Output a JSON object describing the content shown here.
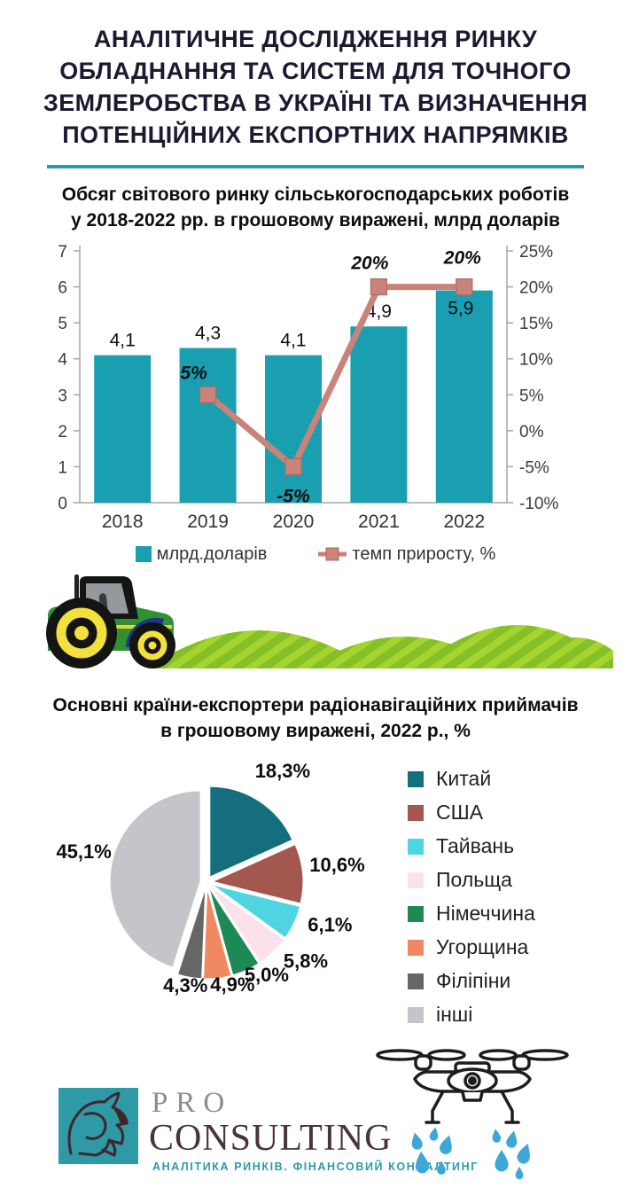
{
  "header": {
    "title_lines": [
      "АНАЛІТИЧНЕ ДОСЛІДЖЕННЯ РИНКУ",
      "ОБЛАДНАННЯ ТА СИСТЕМ ДЛЯ ТОЧНОГО",
      "ЗЕМЛЕРОБСТВА В УКРАЇНІ ТА ВИЗНАЧЕННЯ",
      "ПОТЕНЦІЙНИХ ЕКСПОРТНИХ НАПРЯМКІВ"
    ],
    "divider_color": "#2a9aa8"
  },
  "chart_data": [
    {
      "type": "bar",
      "title": "Обсяг світового ринку сільськогосподарських роботів у 2018-2022 рр. в грошовому виражені, млрд доларів",
      "title_lines": [
        "Обсяг світового ринку сільськогосподарських роботів",
        "у 2018-2022 рр. в грошовому виражені, млрд доларів"
      ],
      "categories": [
        "2018",
        "2019",
        "2020",
        "2021",
        "2022"
      ],
      "series": [
        {
          "name": "млрд.доларів",
          "type": "bar",
          "axis": "left",
          "values": [
            4.1,
            4.3,
            4.1,
            4.9,
            5.9
          ],
          "labels": [
            "4,1",
            "4,3",
            "4,1",
            "4,9",
            "5,9"
          ],
          "color": "#1a9fb0"
        },
        {
          "name": "темп приросту, %",
          "type": "line",
          "axis": "right",
          "values": [
            null,
            5,
            -5,
            20,
            20
          ],
          "labels": [
            "",
            "5%",
            "-5%",
            "20%",
            "20%"
          ],
          "color": "#c9837a",
          "marker": "square"
        }
      ],
      "left_axis": {
        "min": 0,
        "max": 7,
        "ticks": [
          "0",
          "1",
          "2",
          "3",
          "4",
          "5",
          "6",
          "7"
        ]
      },
      "right_axis": {
        "min": -10,
        "max": 25,
        "ticks": [
          "-10%",
          "-5%",
          "0%",
          "5%",
          "10%",
          "15%",
          "20%",
          "25%"
        ]
      },
      "grid": false,
      "legend_position": "bottom"
    },
    {
      "type": "pie",
      "title": "Основні країни-експортери радіонавігаційних приймачів в грошовому виражені, 2022 р., %",
      "title_lines": [
        "Основні країни-експортери радіонавігаційних приймачів",
        "в грошовому виражені, 2022 р., %"
      ],
      "labels": [
        "Китай",
        "США",
        "Тайвань",
        "Польща",
        "Німеччина",
        "Угорщина",
        "Філіпіни",
        "інші"
      ],
      "values": [
        18.3,
        10.6,
        6.1,
        5.8,
        5.0,
        4.9,
        4.3,
        45.1
      ],
      "display_labels": [
        "18,3%",
        "10,6%",
        "6,1%",
        "5,8%",
        "5,0%",
        "4,9%",
        "4,3%",
        "45,1%"
      ],
      "colors": [
        "#156e7d",
        "#a3574e",
        "#4fd4e2",
        "#fae1ec",
        "#1d8a55",
        "#f08862",
        "#666666",
        "#c4c4ca"
      ],
      "start_angle_deg": 0,
      "direction": "clockwise",
      "exploded": true,
      "legend_position": "right"
    }
  ],
  "illustrations": {
    "tractor": "green tractor on striped crop hills",
    "drone": "agricultural spraying drone with water drops"
  },
  "logo": {
    "pro": "PRO",
    "consulting": "CONSULTING",
    "tagline": "АНАЛІТИКА РИНКІВ. ФІНАНСОВИЙ КОНСАЛТИНГ",
    "mark": "rhino head in teal square"
  }
}
